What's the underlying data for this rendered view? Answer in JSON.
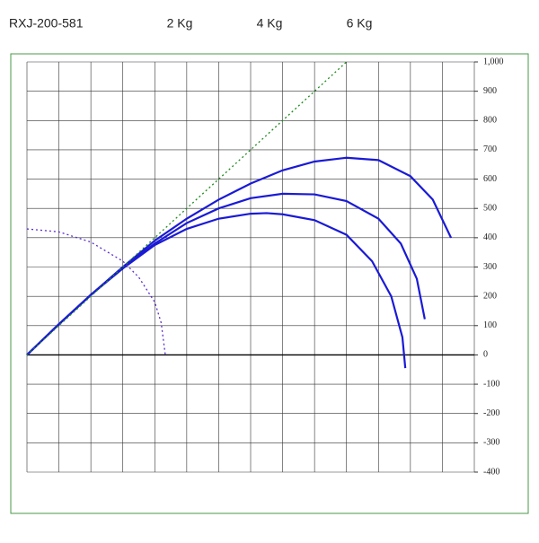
{
  "chart_data": {
    "type": "line",
    "title": "RXJ-200-581",
    "xlim": [
      0,
      14
    ],
    "xticks": [
      0,
      1,
      2,
      3,
      4,
      5,
      6,
      7,
      8,
      9,
      10,
      11,
      12,
      13,
      14
    ],
    "ylim": [
      -400,
      1000
    ],
    "yticks": [
      -400,
      -300,
      -200,
      -100,
      0,
      100,
      200,
      300,
      400,
      500,
      600,
      700,
      800,
      900,
      {
        "value": 1000,
        "label": "1,000"
      }
    ],
    "grid": true,
    "series": [
      {
        "name": "2 Kg",
        "color": "#1a1ad6",
        "style": "solid",
        "x": [
          0,
          1,
          2,
          3,
          4,
          5,
          6,
          7,
          8,
          9,
          10,
          11,
          12,
          12.7,
          13.27
        ],
        "values": [
          0,
          105,
          205,
          300,
          390,
          465,
          530,
          585,
          630,
          660,
          673,
          665,
          610,
          530,
          400
        ]
      },
      {
        "name": "4 Kg",
        "color": "#1a1ad6",
        "style": "solid",
        "x": [
          0,
          1,
          2,
          3,
          4,
          5,
          6,
          7,
          8,
          9,
          10,
          11,
          11.7,
          12.2,
          12.45
        ],
        "values": [
          0,
          105,
          205,
          298,
          380,
          450,
          500,
          535,
          550,
          548,
          525,
          465,
          380,
          260,
          122
        ]
      },
      {
        "name": "6 Kg",
        "color": "#1a1ad6",
        "style": "solid",
        "x": [
          0,
          1,
          2,
          3,
          4,
          5,
          6,
          7,
          7.5,
          8,
          9,
          10,
          10.8,
          11.4,
          11.75,
          11.84
        ],
        "values": [
          0,
          105,
          205,
          295,
          375,
          430,
          465,
          482,
          484,
          480,
          460,
          410,
          320,
          200,
          60,
          -45
        ]
      },
      {
        "color": "#1a8a1a",
        "style": "dotted",
        "x": [
          0,
          10
        ],
        "values": [
          0,
          1000
        ]
      },
      {
        "color": "#5a2ad0",
        "style": "dotted",
        "x": [
          0,
          1,
          2,
          3,
          3.5,
          4,
          4.2,
          4.33
        ],
        "values": [
          430,
          420,
          385,
          320,
          265,
          180,
          110,
          0
        ]
      }
    ]
  }
}
